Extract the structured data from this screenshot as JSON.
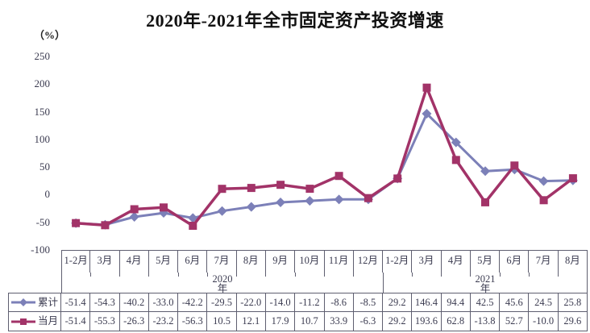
{
  "title": "2020年-2021年全市固定资产投资增速",
  "unit_label": "（%）",
  "colors": {
    "cumulative_series": "#7c80b8",
    "monthly_series": "#a23368",
    "table_border": "#5f5f70",
    "text": "#3b3b50"
  },
  "chart_data": {
    "type": "line",
    "title": "2020年-2021年全市固定资产投资增速",
    "ylabel": "（%）",
    "xlabel": "",
    "ylim": [
      -100,
      250
    ],
    "y_ticks": [
      250,
      200,
      150,
      100,
      50,
      0,
      -50,
      -100
    ],
    "grid": false,
    "legend_position": "bottom-left-table",
    "categories": [
      "1-2月",
      "3月",
      "4月",
      "5月",
      "6月",
      "7月",
      "8月",
      "9月",
      "10月",
      "11月",
      "12月",
      "1-2月",
      "3月",
      "4月",
      "5月",
      "6月",
      "7月",
      "8月"
    ],
    "year_groups": [
      {
        "label": "2020年",
        "start": 0,
        "count": 11
      },
      {
        "label": "2021年",
        "start": 11,
        "count": 7
      }
    ],
    "series": [
      {
        "name": "累计",
        "marker": "diamond",
        "color": "#7c80b8",
        "values": [
          -51.4,
          -54.3,
          -40.2,
          -33.0,
          -42.2,
          -29.5,
          -22.0,
          -14.0,
          -11.2,
          -8.6,
          -8.5,
          29.2,
          146.4,
          94.4,
          42.5,
          45.6,
          24.5,
          25.8
        ]
      },
      {
        "name": "当月",
        "marker": "square",
        "color": "#a23368",
        "values": [
          -51.4,
          -55.3,
          -26.3,
          -23.2,
          -56.3,
          10.5,
          12.1,
          17.9,
          10.7,
          33.9,
          -6.3,
          29.2,
          193.6,
          62.8,
          -13.8,
          52.7,
          -10.0,
          29.6
        ]
      }
    ]
  }
}
